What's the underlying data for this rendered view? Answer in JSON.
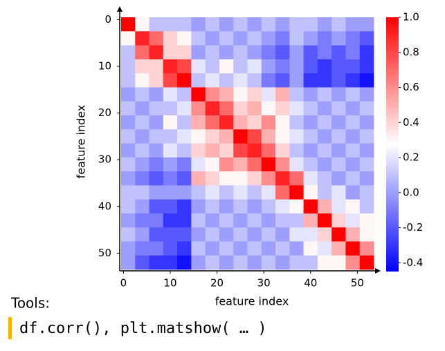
{
  "chart_data": {
    "type": "heatmap",
    "xlabel": "feature index",
    "ylabel": "feature index",
    "xlim": [
      -0.5,
      53.5
    ],
    "ylim": [
      -0.5,
      53.5
    ],
    "xticks": [
      0,
      10,
      20,
      30,
      40,
      50
    ],
    "yticks": [
      0,
      10,
      20,
      30,
      40,
      50
    ],
    "colormap": "bwr",
    "clim": [
      -0.45,
      1.0
    ],
    "colorbar_ticks": [
      {
        "value": 1,
        "label": "1.0"
      },
      0.8,
      0.6,
      0.4,
      0.2,
      {
        "value": 0,
        "label": "0.0"
      },
      -0.2,
      -0.4
    ],
    "z": [
      [
        1.0,
        0.3,
        0.1,
        0.1,
        0.1,
        0.0,
        0.1,
        0.0,
        0.1,
        0.0,
        0.1,
        0.0,
        0.1,
        0.1,
        0.0,
        0.1,
        0.0,
        0.0
      ],
      [
        0.3,
        0.9,
        0.7,
        0.4,
        0.3,
        0.1,
        0.0,
        0.1,
        0.0,
        0.1,
        0.0,
        -0.1,
        0.1,
        0.0,
        -0.1,
        0.0,
        -0.1,
        -0.2
      ],
      [
        0.1,
        0.7,
        0.9,
        0.4,
        0.4,
        0.0,
        0.1,
        0.0,
        0.1,
        0.0,
        -0.1,
        -0.2,
        0.0,
        -0.2,
        -0.1,
        -0.2,
        -0.1,
        -0.3
      ],
      [
        0.1,
        0.4,
        0.4,
        0.9,
        0.8,
        0.2,
        0.1,
        0.3,
        0.1,
        0.2,
        0.0,
        -0.1,
        0.0,
        -0.2,
        -0.3,
        -0.2,
        -0.2,
        -0.3
      ],
      [
        0.1,
        0.3,
        0.4,
        0.8,
        1.0,
        0.1,
        0.2,
        0.1,
        0.2,
        0.1,
        -0.1,
        -0.2,
        0.0,
        -0.3,
        -0.3,
        -0.2,
        -0.3,
        -0.4
      ],
      [
        0.0,
        0.1,
        0.0,
        0.2,
        0.1,
        1.0,
        0.6,
        0.5,
        0.3,
        0.4,
        0.2,
        0.5,
        0.1,
        0.0,
        0.1,
        0.0,
        0.1,
        0.0
      ],
      [
        0.1,
        0.0,
        0.1,
        0.1,
        0.2,
        0.6,
        0.9,
        0.7,
        0.4,
        0.5,
        0.3,
        0.4,
        0.2,
        0.1,
        0.0,
        0.1,
        0.0,
        0.1
      ],
      [
        0.0,
        0.1,
        0.0,
        0.3,
        0.1,
        0.5,
        0.7,
        0.9,
        0.5,
        0.4,
        0.6,
        0.3,
        0.1,
        0.0,
        0.1,
        0.0,
        0.1,
        0.0
      ],
      [
        0.1,
        0.0,
        0.1,
        0.1,
        0.2,
        0.3,
        0.4,
        0.5,
        1.0,
        0.8,
        0.5,
        0.3,
        0.2,
        0.1,
        0.0,
        0.1,
        0.0,
        0.1
      ],
      [
        0.0,
        0.1,
        0.0,
        0.2,
        0.1,
        0.4,
        0.5,
        0.4,
        0.8,
        0.9,
        0.7,
        0.4,
        0.1,
        0.0,
        0.1,
        0.0,
        0.1,
        0.0
      ],
      [
        0.1,
        0.0,
        -0.1,
        0.0,
        -0.1,
        0.2,
        0.3,
        0.6,
        0.5,
        0.7,
        1.0,
        0.6,
        0.2,
        0.1,
        0.0,
        0.1,
        0.0,
        0.1
      ],
      [
        0.0,
        -0.1,
        -0.2,
        -0.1,
        -0.2,
        0.5,
        0.4,
        0.3,
        0.3,
        0.4,
        0.6,
        0.9,
        0.7,
        0.2,
        0.1,
        0.0,
        0.1,
        0.0
      ],
      [
        0.1,
        0.1,
        0.0,
        0.0,
        0.0,
        0.1,
        0.2,
        0.1,
        0.2,
        0.1,
        0.2,
        0.7,
        1.0,
        0.3,
        0.1,
        0.2,
        0.0,
        0.1
      ],
      [
        0.1,
        0.0,
        -0.2,
        -0.2,
        -0.3,
        0.0,
        0.1,
        0.0,
        0.1,
        0.0,
        0.1,
        0.2,
        0.3,
        1.0,
        0.5,
        0.2,
        0.3,
        0.1
      ],
      [
        0.0,
        -0.1,
        -0.1,
        -0.3,
        -0.3,
        0.1,
        0.0,
        0.1,
        0.0,
        0.1,
        0.0,
        0.1,
        0.1,
        0.5,
        1.0,
        0.4,
        0.2,
        0.3
      ],
      [
        0.1,
        0.0,
        -0.2,
        -0.2,
        -0.2,
        0.0,
        0.1,
        0.0,
        0.1,
        0.0,
        0.1,
        0.0,
        0.2,
        0.2,
        0.4,
        1.0,
        0.5,
        0.3
      ],
      [
        0.0,
        -0.1,
        -0.1,
        -0.2,
        -0.3,
        0.1,
        0.0,
        0.1,
        0.0,
        0.1,
        0.0,
        0.1,
        0.0,
        0.3,
        0.2,
        0.5,
        1.0,
        0.6
      ],
      [
        0.0,
        -0.2,
        -0.3,
        -0.3,
        -0.4,
        0.0,
        0.1,
        0.0,
        0.1,
        0.0,
        0.1,
        0.0,
        0.1,
        0.1,
        0.3,
        0.3,
        0.6,
        1.0
      ]
    ]
  },
  "notes": {
    "label": "Tools:",
    "code": "df.corr(), plt.matshow( … )"
  }
}
